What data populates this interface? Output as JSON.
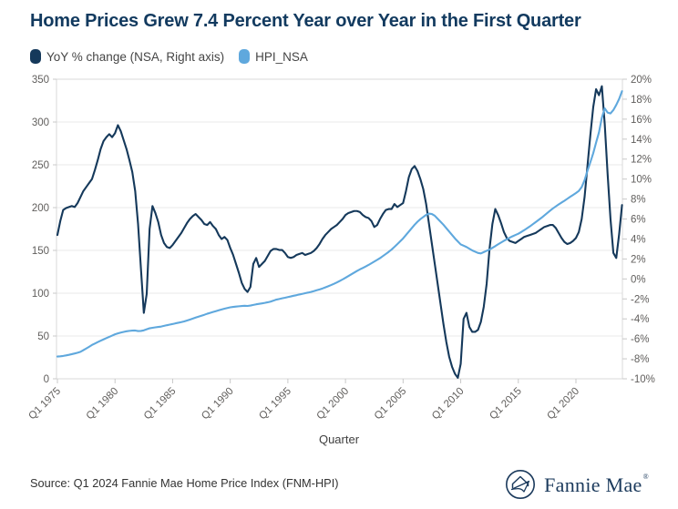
{
  "title": "Home Prices Grew 7.4 Percent Year over Year in the First Quarter",
  "legend": {
    "items": [
      {
        "label": "YoY % change (NSA, Right axis)",
        "color": "#15395B"
      },
      {
        "label": "HPI_NSA",
        "color": "#5FA8DD"
      }
    ]
  },
  "source": "Source: Q1 2024 Fannie Mae Home Price Index (FNM-HPI)",
  "logo": {
    "text": "Fannie Mae",
    "registered": "®",
    "icon": "fannie-mae-house-circle-icon"
  },
  "colors": {
    "title": "#123A5F",
    "yoy_line": "#15395B",
    "hpi_line": "#5FA8DD",
    "axis_text": "#605E5C",
    "gridline": "#E8E8E8",
    "border": "#D9D9D9",
    "tick": "#C8C8C8",
    "x_axis_title": "#404040"
  },
  "chart_data": {
    "type": "line",
    "title": "Home Prices Grew 7.4 Percent Year over Year in the First Quarter",
    "xlabel": "Quarter",
    "x_tick_labels": [
      "Q1 1975",
      "Q1 1980",
      "Q1 1985",
      "Q1 1990",
      "Q1 1995",
      "Q1 2000",
      "Q1 2005",
      "Q1 2010",
      "Q1 2015",
      "Q1 2020"
    ],
    "x_range": {
      "start": "Q1 1975",
      "end": "Q1 2024",
      "frequency": "quarterly"
    },
    "left_axis": {
      "min": 0,
      "max": 350,
      "step": 50,
      "maps_series": "HPI_NSA"
    },
    "right_axis": {
      "min": -10,
      "max": 20,
      "step": 2,
      "unit": "%",
      "maps_series": "YoY % change (NSA, Right axis)"
    },
    "grid": "horizontal",
    "legend_position": "top-left",
    "series": [
      {
        "name": "YoY % change (NSA, Right axis)",
        "axis": "right",
        "color": "#15395B",
        "start": "Q1 1975",
        "frequency": "quarterly",
        "values": [
          4.4,
          5.8,
          6.9,
          7.1,
          7.2,
          7.3,
          7.2,
          7.6,
          8.2,
          8.8,
          9.2,
          9.6,
          10.0,
          10.9,
          11.9,
          13.0,
          13.8,
          14.2,
          14.5,
          14.2,
          14.6,
          15.4,
          14.8,
          13.9,
          13.0,
          11.9,
          10.7,
          8.8,
          5.5,
          1.0,
          -3.4,
          -1.5,
          5.0,
          7.3,
          6.6,
          5.7,
          4.4,
          3.6,
          3.2,
          3.1,
          3.4,
          3.8,
          4.2,
          4.6,
          5.1,
          5.6,
          6.0,
          6.3,
          6.5,
          6.2,
          5.9,
          5.5,
          5.4,
          5.7,
          5.3,
          5.0,
          4.4,
          4.0,
          4.2,
          3.9,
          3.1,
          2.4,
          1.5,
          0.6,
          -0.4,
          -1.0,
          -1.3,
          -0.8,
          1.5,
          2.1,
          1.2,
          1.5,
          1.8,
          2.3,
          2.8,
          3.0,
          3.0,
          2.9,
          2.9,
          2.6,
          2.2,
          2.1,
          2.2,
          2.4,
          2.5,
          2.6,
          2.4,
          2.5,
          2.6,
          2.8,
          3.1,
          3.5,
          4.0,
          4.4,
          4.7,
          5.0,
          5.2,
          5.4,
          5.7,
          6.0,
          6.4,
          6.6,
          6.7,
          6.8,
          6.8,
          6.7,
          6.4,
          6.2,
          6.1,
          5.8,
          5.2,
          5.4,
          6.0,
          6.5,
          6.9,
          7.0,
          7.0,
          7.5,
          7.2,
          7.4,
          7.6,
          8.8,
          10.2,
          11.0,
          11.3,
          10.8,
          10.0,
          9.0,
          7.5,
          5.5,
          3.5,
          1.5,
          -0.5,
          -2.5,
          -4.5,
          -6.3,
          -7.8,
          -8.8,
          -9.5,
          -9.9,
          -8.5,
          -4.0,
          -3.4,
          -4.8,
          -5.3,
          -5.3,
          -5.1,
          -4.3,
          -2.8,
          -0.5,
          3.0,
          5.5,
          7.0,
          6.4,
          5.6,
          4.7,
          4.1,
          3.8,
          3.7,
          3.6,
          3.8,
          4.0,
          4.2,
          4.3,
          4.4,
          4.5,
          4.6,
          4.8,
          5.0,
          5.2,
          5.3,
          5.4,
          5.4,
          5.1,
          4.6,
          4.1,
          3.7,
          3.5,
          3.6,
          3.8,
          4.1,
          4.7,
          6.0,
          8.2,
          11.3,
          14.4,
          17.2,
          19.0,
          18.4,
          19.3,
          15.5,
          10.5,
          6.0,
          2.6,
          2.1,
          4.5,
          7.4
        ]
      },
      {
        "name": "HPI_NSA",
        "axis": "left",
        "color": "#5FA8DD",
        "start": "Q1 1975",
        "frequency": "quarterly",
        "values": [
          26.0,
          26.3,
          26.7,
          27.3,
          28.0,
          28.8,
          29.6,
          30.5,
          31.5,
          33.4,
          35.4,
          37.4,
          39.5,
          41.2,
          42.9,
          44.5,
          46.0,
          47.5,
          49.0,
          50.5,
          52.0,
          53.0,
          54.0,
          54.8,
          55.5,
          56.0,
          56.3,
          56.4,
          55.8,
          55.9,
          56.6,
          57.8,
          59.0,
          59.6,
          60.1,
          60.6,
          61.0,
          61.8,
          62.6,
          63.3,
          64.0,
          64.8,
          65.5,
          66.2,
          67.0,
          68.1,
          69.2,
          70.3,
          71.5,
          72.6,
          73.7,
          74.8,
          76.0,
          77.0,
          78.0,
          79.0,
          80.0,
          81.0,
          81.9,
          82.7,
          83.5,
          84.0,
          84.4,
          84.7,
          85.0,
          85.3,
          85.1,
          85.6,
          86.3,
          87.0,
          87.6,
          88.1,
          88.7,
          89.4,
          90.2,
          91.3,
          92.5,
          93.2,
          94.0,
          94.7,
          95.5,
          96.2,
          97.0,
          97.7,
          98.5,
          99.2,
          100.0,
          100.7,
          101.5,
          102.4,
          103.4,
          104.4,
          105.5,
          106.8,
          108.1,
          109.5,
          111.0,
          112.6,
          114.3,
          116.1,
          118.0,
          120.0,
          122.0,
          124.0,
          126.0,
          127.8,
          129.5,
          131.2,
          133.0,
          135.0,
          137.0,
          139.0,
          141.0,
          143.4,
          145.8,
          148.3,
          151.0,
          154.1,
          157.3,
          160.6,
          164.0,
          168.0,
          172.0,
          176.0,
          180.0,
          183.5,
          186.5,
          189.0,
          191.5,
          193.0,
          192.5,
          190.5,
          187.0,
          183.5,
          180.0,
          176.0,
          172.0,
          168.0,
          164.0,
          160.5,
          157.0,
          155.5,
          154.0,
          152.0,
          150.0,
          148.5,
          147.0,
          146.5,
          148.0,
          149.5,
          151.0,
          153.0,
          155.0,
          157.2,
          159.2,
          161.2,
          163.0,
          164.8,
          166.5,
          168.0,
          169.5,
          171.5,
          173.6,
          175.8,
          178.0,
          180.5,
          183.0,
          185.5,
          188.0,
          190.8,
          193.5,
          196.3,
          199.0,
          201.4,
          203.7,
          205.9,
          208.0,
          210.3,
          212.6,
          214.8,
          217.0,
          219.5,
          224.0,
          232.0,
          243.0,
          253.0,
          263.5,
          276.0,
          288.0,
          305.0,
          316.0,
          311.0,
          310.0,
          314.0,
          320.0,
          327.0,
          336.0
        ]
      }
    ]
  }
}
